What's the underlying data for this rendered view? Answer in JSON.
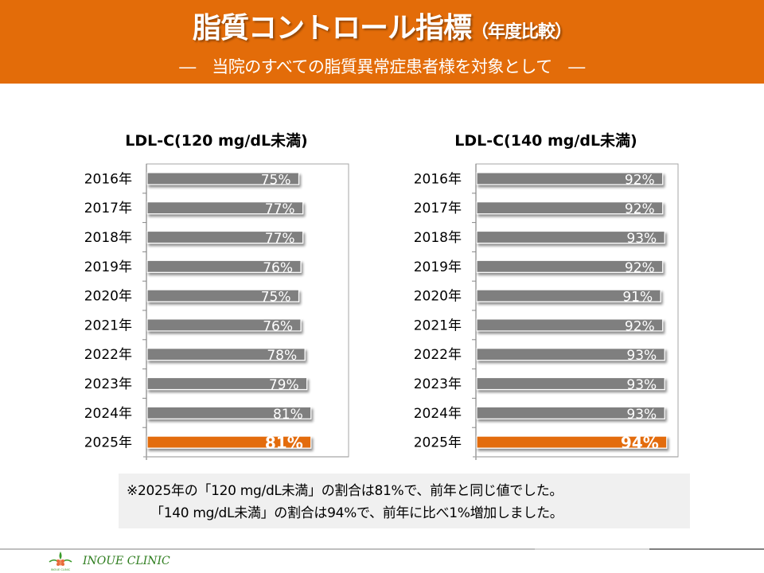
{
  "header": {
    "title": "脂質コントロール指標",
    "title_suffix": "（年度比較）",
    "subtitle": "―　当院のすべての脂質異常症患者様を対象として　―",
    "background_color": "#e36c09"
  },
  "chart_data": [
    {
      "type": "bar",
      "orientation": "horizontal",
      "title": "LDL-C(120 mg/dL未満)",
      "categories": [
        "2016年",
        "2017年",
        "2018年",
        "2019年",
        "2020年",
        "2021年",
        "2022年",
        "2023年",
        "2024年",
        "2025年"
      ],
      "values": [
        75,
        77,
        77,
        76,
        75,
        76,
        78,
        79,
        81,
        81
      ],
      "labels": [
        "75%",
        "77%",
        "77%",
        "76%",
        "75%",
        "76%",
        "78%",
        "79%",
        "81%",
        "81%"
      ],
      "highlight_index": 9,
      "xlabel": "",
      "ylabel": "",
      "xlim": [
        0,
        100
      ],
      "grid": false,
      "bar_color": "#7f7f7f",
      "highlight_color": "#e36c09"
    },
    {
      "type": "bar",
      "orientation": "horizontal",
      "title": "LDL-C(140 mg/dL未満)",
      "categories": [
        "2016年",
        "2017年",
        "2018年",
        "2019年",
        "2020年",
        "2021年",
        "2022年",
        "2023年",
        "2024年",
        "2025年"
      ],
      "values": [
        92,
        92,
        93,
        92,
        91,
        92,
        93,
        93,
        93,
        94
      ],
      "labels": [
        "92%",
        "92%",
        "93%",
        "92%",
        "91%",
        "92%",
        "93%",
        "93%",
        "93%",
        "94%"
      ],
      "highlight_index": 9,
      "xlabel": "",
      "ylabel": "",
      "xlim": [
        0,
        100
      ],
      "grid": false,
      "bar_color": "#7f7f7f",
      "highlight_color": "#e36c09"
    }
  ],
  "note": {
    "line1": "※2025年の「120 mg/dL未満」の割合は81%で、前年と同じ値でした。",
    "line2": "「140 mg/dL未満」の割合は94%で、前年に比べ1%増加しました。"
  },
  "footer": {
    "clinic_name": "INOUE CLINIC",
    "logo_text": "INOUE CLINIC"
  }
}
